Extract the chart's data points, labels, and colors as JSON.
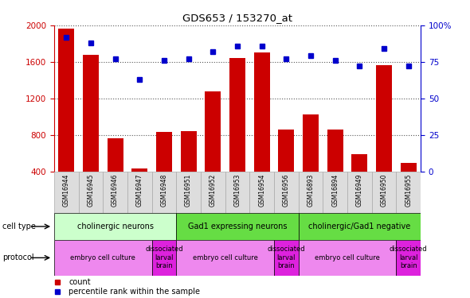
{
  "title": "GDS653 / 153270_at",
  "samples": [
    "GSM16944",
    "GSM16945",
    "GSM16946",
    "GSM16947",
    "GSM16948",
    "GSM16951",
    "GSM16952",
    "GSM16953",
    "GSM16954",
    "GSM16956",
    "GSM16893",
    "GSM16894",
    "GSM16949",
    "GSM16950",
    "GSM16955"
  ],
  "counts": [
    1960,
    1680,
    760,
    430,
    830,
    840,
    1280,
    1640,
    1700,
    860,
    1020,
    860,
    590,
    1560,
    490
  ],
  "percentiles": [
    92,
    88,
    77,
    63,
    76,
    77,
    82,
    86,
    86,
    77,
    79,
    76,
    72,
    84,
    72
  ],
  "ylim_left": [
    400,
    2000
  ],
  "ylim_right": [
    0,
    100
  ],
  "yticks_left": [
    400,
    800,
    1200,
    1600,
    2000
  ],
  "yticks_right": [
    0,
    25,
    50,
    75,
    100
  ],
  "bar_color": "#cc0000",
  "dot_color": "#0000cc",
  "grid_color": "#555555",
  "ct_groups": [
    {
      "label": "cholinergic neurons",
      "start": 0,
      "end": 5,
      "color": "#ccffcc"
    },
    {
      "label": "Gad1 expressing neurons",
      "start": 5,
      "end": 10,
      "color": "#66dd44"
    },
    {
      "label": "cholinergic/Gad1 negative",
      "start": 10,
      "end": 15,
      "color": "#66dd44"
    }
  ],
  "pr_groups": [
    {
      "label": "embryo cell culture",
      "start": 0,
      "end": 4,
      "color": "#ee88ee"
    },
    {
      "label": "dissociated\nlarval\nbrain",
      "start": 4,
      "end": 5,
      "color": "#dd22dd"
    },
    {
      "label": "embryo cell culture",
      "start": 5,
      "end": 9,
      "color": "#ee88ee"
    },
    {
      "label": "dissociated\nlarval\nbrain",
      "start": 9,
      "end": 10,
      "color": "#dd22dd"
    },
    {
      "label": "embryo cell culture",
      "start": 10,
      "end": 14,
      "color": "#ee88ee"
    },
    {
      "label": "dissociated\nlarval\nbrain",
      "start": 14,
      "end": 15,
      "color": "#dd22dd"
    }
  ],
  "xtick_bg": "#dddddd",
  "xtick_border": "#aaaaaa"
}
